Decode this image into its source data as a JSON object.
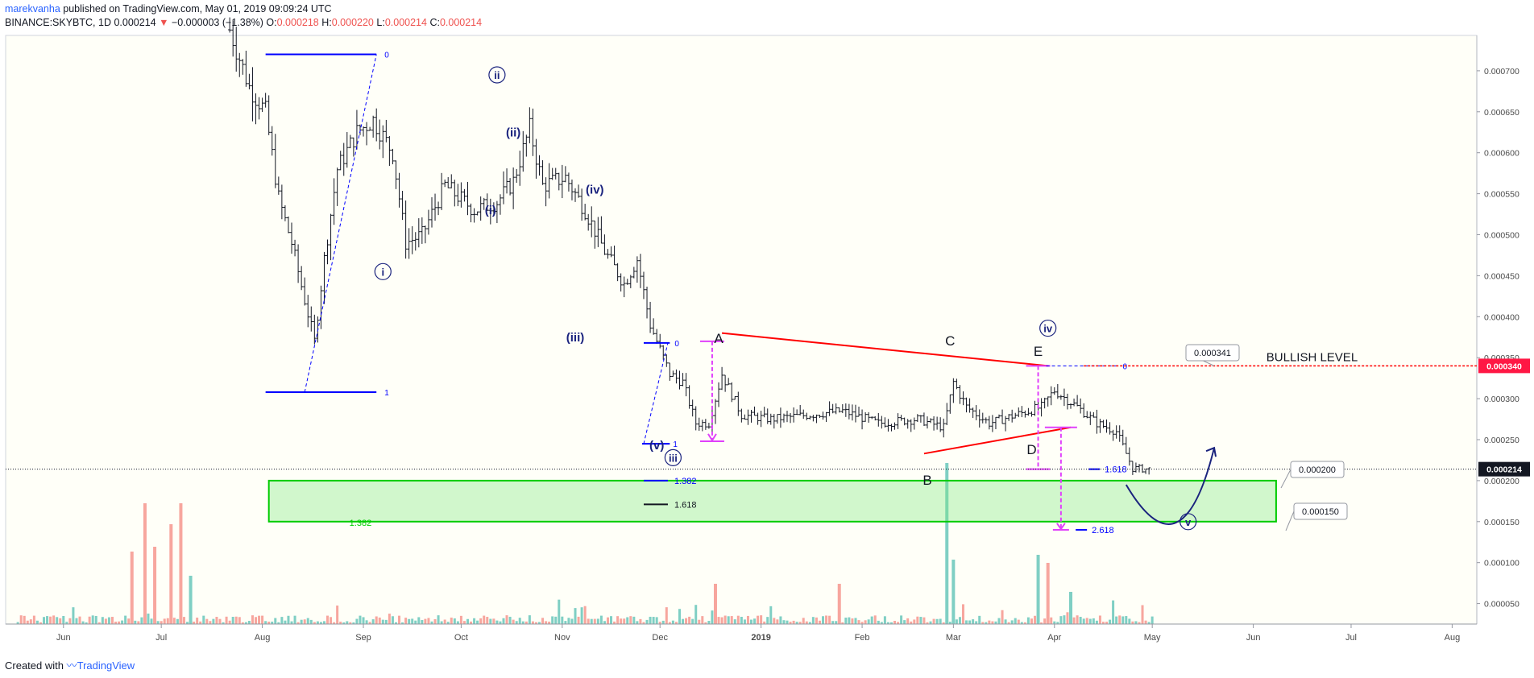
{
  "header": {
    "author": "marekvanha",
    "published": "published on TradingView.com, May 01, 2019 09:09:24 UTC",
    "symbol": "BINANCE:SKYBTC, 1D",
    "last": "0.000214",
    "change": "−0.000003 (−1.38%)",
    "o_label": "O:",
    "o_value": "0.000218",
    "h_label": "H:",
    "h_value": "0.000220",
    "l_label": "L:",
    "l_value": "0.000214",
    "c_label": "C:",
    "c_value": "0.000214"
  },
  "footer": {
    "created_with": "Created with",
    "brand": "TradingView"
  },
  "colors": {
    "background": "#fffff8",
    "candle": "#131722",
    "wave_label": "#1a237e",
    "triangle_line": "#ff0000",
    "projection": "#e040fb",
    "fib_line": "#0000ff",
    "target_zone": "#7ce87c",
    "target_zone_border": "#00cc00",
    "bullish_level": "#ff0000",
    "volume_up": "#7fcfc4",
    "volume_down": "#f7a69e"
  },
  "chart_data": {
    "type": "candlestick",
    "symbol": "SKYBTC",
    "timeframe": "1D",
    "x_range": [
      "2018-05-15",
      "2019-08-15"
    ],
    "y_range": [
      2e-05,
      0.00075
    ],
    "x_ticks": [
      {
        "label": "Jun",
        "date": "2018-06-01"
      },
      {
        "label": "Jul",
        "date": "2018-07-01"
      },
      {
        "label": "Aug",
        "date": "2018-08-01"
      },
      {
        "label": "Sep",
        "date": "2018-09-01"
      },
      {
        "label": "Oct",
        "date": "2018-10-01"
      },
      {
        "label": "Nov",
        "date": "2018-11-01"
      },
      {
        "label": "Dec",
        "date": "2018-12-01"
      },
      {
        "label": "2019",
        "date": "2019-01-01"
      },
      {
        "label": "Feb",
        "date": "2019-02-01"
      },
      {
        "label": "Mar",
        "date": "2019-03-01"
      },
      {
        "label": "Apr",
        "date": "2019-04-01"
      },
      {
        "label": "May",
        "date": "2019-05-01"
      },
      {
        "label": "Jun",
        "date": "2019-06-01"
      },
      {
        "label": "Jul",
        "date": "2019-07-01"
      },
      {
        "label": "Aug",
        "date": "2019-08-01"
      }
    ],
    "y_ticks": [
      "0.000750",
      "0.000700",
      "0.000650",
      "0.000600",
      "0.000550",
      "0.000500",
      "0.000450",
      "0.000400",
      "0.000350",
      "0.000300",
      "0.000250",
      "0.000200",
      "0.000150",
      "0.000100",
      "0.000050"
    ],
    "price_path": [
      {
        "date": "2018-07-22",
        "price": 0.00075
      },
      {
        "date": "2018-07-28",
        "price": 0.00068
      },
      {
        "date": "2018-08-02",
        "price": 0.00065
      },
      {
        "date": "2018-08-06",
        "price": 0.000545
      },
      {
        "date": "2018-08-10",
        "price": 0.00049
      },
      {
        "date": "2018-08-14",
        "price": 0.00042
      },
      {
        "date": "2018-08-17",
        "price": 0.00037
      },
      {
        "date": "2018-08-20",
        "price": 0.00047
      },
      {
        "date": "2018-08-24",
        "price": 0.00058
      },
      {
        "date": "2018-08-30",
        "price": 0.000625
      },
      {
        "date": "2018-09-04",
        "price": 0.00064
      },
      {
        "date": "2018-09-10",
        "price": 0.0006
      },
      {
        "date": "2018-09-14",
        "price": 0.00049
      },
      {
        "date": "2018-09-19",
        "price": 0.0005
      },
      {
        "date": "2018-09-26",
        "price": 0.00056
      },
      {
        "date": "2018-10-05",
        "price": 0.00053
      },
      {
        "date": "2018-10-12",
        "price": 0.00054
      },
      {
        "date": "2018-10-17",
        "price": 0.000565
      },
      {
        "date": "2018-10-22",
        "price": 0.00063
      },
      {
        "date": "2018-10-26",
        "price": 0.00056
      },
      {
        "date": "2018-11-02",
        "price": 0.00057
      },
      {
        "date": "2018-11-08",
        "price": 0.00053
      },
      {
        "date": "2018-11-14",
        "price": 0.00048
      },
      {
        "date": "2018-11-20",
        "price": 0.00044
      },
      {
        "date": "2018-11-24",
        "price": 0.00047
      },
      {
        "date": "2018-11-28",
        "price": 0.00039
      },
      {
        "date": "2018-12-04",
        "price": 0.00033
      },
      {
        "date": "2018-12-08",
        "price": 0.00032
      },
      {
        "date": "2018-12-12",
        "price": 0.00027
      },
      {
        "date": "2018-12-16",
        "price": 0.00027
      },
      {
        "date": "2018-12-20",
        "price": 0.00033
      },
      {
        "date": "2018-12-26",
        "price": 0.00028
      },
      {
        "date": "2019-01-04",
        "price": 0.000275
      },
      {
        "date": "2019-01-15",
        "price": 0.00028
      },
      {
        "date": "2019-01-26",
        "price": 0.000285
      },
      {
        "date": "2019-02-06",
        "price": 0.00027
      },
      {
        "date": "2019-02-18",
        "price": 0.000275
      },
      {
        "date": "2019-02-26",
        "price": 0.000265
      },
      {
        "date": "2019-03-01",
        "price": 0.00032
      },
      {
        "date": "2019-03-05",
        "price": 0.00029
      },
      {
        "date": "2019-03-12",
        "price": 0.00027
      },
      {
        "date": "2019-03-20",
        "price": 0.00028
      },
      {
        "date": "2019-03-28",
        "price": 0.00029
      },
      {
        "date": "2019-04-01",
        "price": 0.00031
      },
      {
        "date": "2019-04-08",
        "price": 0.00029
      },
      {
        "date": "2019-04-14",
        "price": 0.00027
      },
      {
        "date": "2019-04-20",
        "price": 0.00026
      },
      {
        "date": "2019-04-25",
        "price": 0.000215
      },
      {
        "date": "2019-04-30",
        "price": 0.000214
      }
    ],
    "volume_spikes": [
      {
        "date": "2018-06-22",
        "value": 0.45,
        "color": "down"
      },
      {
        "date": "2018-06-26",
        "value": 0.75,
        "color": "down"
      },
      {
        "date": "2018-06-29",
        "value": 0.48,
        "color": "down"
      },
      {
        "date": "2018-07-04",
        "value": 0.62,
        "color": "down"
      },
      {
        "date": "2018-07-07",
        "value": 0.75,
        "color": "down"
      },
      {
        "date": "2018-07-10",
        "value": 0.3,
        "color": "up"
      },
      {
        "date": "2018-12-18",
        "value": 0.25,
        "color": "down"
      },
      {
        "date": "2019-01-25",
        "value": 0.25,
        "color": "down"
      },
      {
        "date": "2019-02-27",
        "value": 1.0,
        "color": "up"
      },
      {
        "date": "2019-03-01",
        "value": 0.4,
        "color": "up"
      },
      {
        "date": "2019-03-27",
        "value": 0.43,
        "color": "up"
      },
      {
        "date": "2019-03-30",
        "value": 0.38,
        "color": "down"
      },
      {
        "date": "2019-04-06",
        "value": 0.2,
        "color": "up"
      }
    ],
    "last_price": "0.000214",
    "price_labels": [
      "0.000340",
      "0.000214"
    ],
    "callouts": [
      "0.000341",
      "0.000200",
      "0.000150"
    ],
    "bullish_level": {
      "label": "BULLISH LEVEL",
      "price": 0.00034
    },
    "target_zone": {
      "from": 0.00015,
      "to": 0.0002
    },
    "wave_labels": [
      {
        "text": "i",
        "date": "2018-09-07",
        "price": 0.000455,
        "circled": true
      },
      {
        "text": "ii",
        "date": "2018-10-12",
        "price": 0.000695,
        "circled": true
      },
      {
        "text": "(i)",
        "date": "2018-10-10",
        "price": 0.00053,
        "circled": false
      },
      {
        "text": "(ii)",
        "date": "2018-10-17",
        "price": 0.000625,
        "circled": false
      },
      {
        "text": "(iii)",
        "date": "2018-11-05",
        "price": 0.000375,
        "circled": false
      },
      {
        "text": "(iv)",
        "date": "2018-11-11",
        "price": 0.000555,
        "circled": false
      },
      {
        "text": "(v)",
        "date": "2018-11-30",
        "price": 0.000243,
        "circled": false
      },
      {
        "text": "iii",
        "date": "2018-12-05",
        "price": 0.000228,
        "circled": true
      },
      {
        "text": "A",
        "date": "2018-12-19",
        "price": 0.000373,
        "circled": false
      },
      {
        "text": "B",
        "date": "2019-02-21",
        "price": 0.0002,
        "circled": false
      },
      {
        "text": "C",
        "date": "2019-02-28",
        "price": 0.00037,
        "circled": false
      },
      {
        "text": "D",
        "date": "2019-03-25",
        "price": 0.000237,
        "circled": false
      },
      {
        "text": "E",
        "date": "2019-03-27",
        "price": 0.000357,
        "circled": false
      },
      {
        "text": "iv",
        "date": "2019-03-30",
        "price": 0.000386,
        "circled": true
      },
      {
        "text": "v",
        "date": "2019-05-12",
        "price": 0.00015,
        "circled": true
      }
    ],
    "fib_labels": [
      "0",
      "1",
      "0",
      "1",
      "0",
      "1.382",
      "1.618",
      "1.382",
      "1.618",
      "2.618"
    ]
  }
}
